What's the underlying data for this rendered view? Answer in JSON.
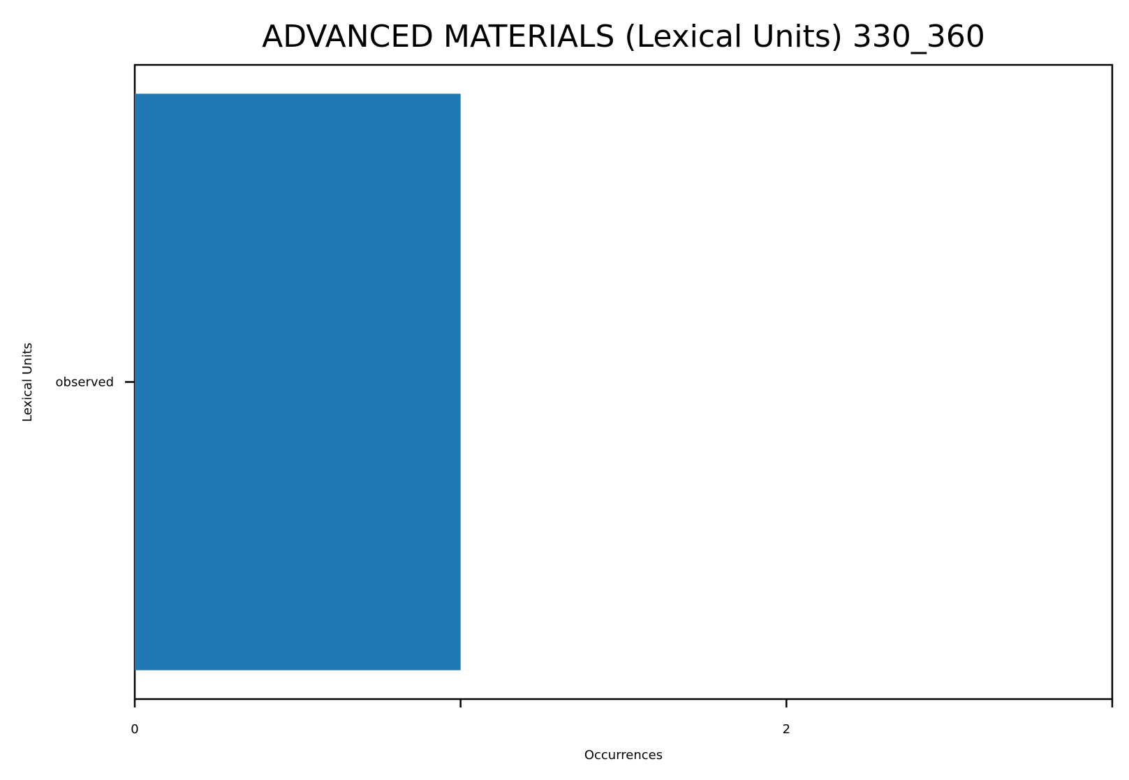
{
  "chart_data": {
    "type": "bar",
    "orientation": "horizontal",
    "title": "ADVANCED MATERIALS (Lexical Units) 330_360",
    "xlabel": "Occurrences",
    "ylabel": "Lexical Units",
    "categories": [
      "observed"
    ],
    "values": [
      1
    ],
    "xlim": [
      0,
      3
    ],
    "x_ticks": [
      0,
      1,
      2,
      3
    ],
    "x_tick_labels": [
      "0",
      "",
      "2",
      ""
    ],
    "grid": false,
    "legend": "none",
    "bar_color": "#1f77b4"
  }
}
